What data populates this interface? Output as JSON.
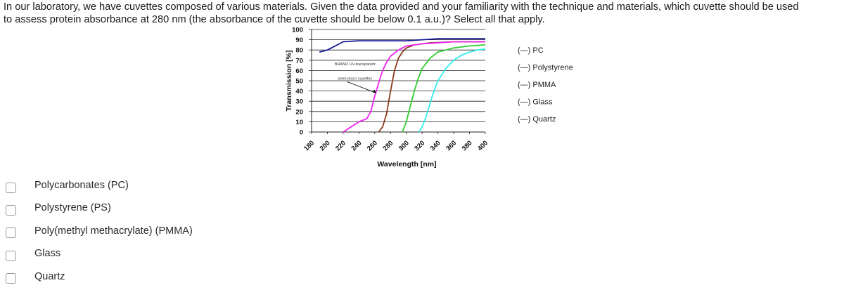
{
  "question": {
    "line1": "In our laboratory, we have cuvettes composed of various materials. Given the data provided and your familiarity with the technique and materials, which cuvette should be used",
    "line2": "to assess protein absorbance at 280 nm (the absorbance of the cuvette should be below 0.1 a.u.)? Select all that apply."
  },
  "chart_data": {
    "type": "line",
    "xlabel": "Wavelength [nm]",
    "ylabel": "Transmission [%]",
    "xlim": [
      180,
      400
    ],
    "ylim": [
      0,
      100
    ],
    "x_ticks": [
      "180",
      "200",
      "220",
      "240",
      "260",
      "280",
      "300",
      "320",
      "340",
      "360",
      "380",
      "400"
    ],
    "y_ticks": [
      "100",
      "90",
      "80",
      "70",
      "60",
      "50",
      "40",
      "30",
      "20",
      "10",
      "0"
    ],
    "grid": true,
    "legend_placement": "right",
    "annotation_lines": [
      "BRAND UV-transparent",
      "semi-micro cuvettes"
    ],
    "series": [
      {
        "name": "PC",
        "legend_label": "(—) PC",
        "color": "#8b3a1a",
        "points": [
          [
            265,
            0
          ],
          [
            270,
            5
          ],
          [
            275,
            18
          ],
          [
            280,
            40
          ],
          [
            285,
            60
          ],
          [
            290,
            72
          ],
          [
            295,
            78
          ],
          [
            300,
            82
          ],
          [
            310,
            85
          ],
          [
            330,
            87
          ],
          [
            360,
            88
          ],
          [
            400,
            88
          ]
        ]
      },
      {
        "name": "Polystyrene",
        "legend_label": "(—) Polystyrene",
        "color": "#ee22ee",
        "points": [
          [
            220,
            0
          ],
          [
            230,
            5
          ],
          [
            240,
            10
          ],
          [
            250,
            13
          ],
          [
            255,
            20
          ],
          [
            260,
            35
          ],
          [
            265,
            48
          ],
          [
            270,
            60
          ],
          [
            275,
            68
          ],
          [
            280,
            74
          ],
          [
            290,
            80
          ],
          [
            300,
            84
          ],
          [
            320,
            86
          ],
          [
            360,
            88
          ],
          [
            400,
            88
          ]
        ]
      },
      {
        "name": "PMMA",
        "legend_label": "(—) PMMA",
        "color": "#33cc33",
        "points": [
          [
            295,
            0
          ],
          [
            300,
            10
          ],
          [
            305,
            25
          ],
          [
            310,
            40
          ],
          [
            315,
            52
          ],
          [
            320,
            62
          ],
          [
            330,
            72
          ],
          [
            340,
            78
          ],
          [
            360,
            82
          ],
          [
            380,
            84
          ],
          [
            400,
            85
          ]
        ]
      },
      {
        "name": "Glass",
        "legend_label": "(—) Glass",
        "color": "#33eeee",
        "points": [
          [
            316,
            0
          ],
          [
            320,
            5
          ],
          [
            325,
            15
          ],
          [
            330,
            28
          ],
          [
            335,
            40
          ],
          [
            340,
            50
          ],
          [
            350,
            62
          ],
          [
            360,
            70
          ],
          [
            370,
            75
          ],
          [
            380,
            78
          ],
          [
            390,
            80
          ],
          [
            400,
            81
          ]
        ]
      },
      {
        "name": "Quartz",
        "legend_label": "(—) Quartz",
        "color": "#1a1a99",
        "points": [
          [
            190,
            78
          ],
          [
            200,
            80
          ],
          [
            210,
            84
          ],
          [
            220,
            88
          ],
          [
            240,
            89
          ],
          [
            260,
            89
          ],
          [
            280,
            89
          ],
          [
            300,
            89
          ],
          [
            320,
            90
          ],
          [
            340,
            91
          ],
          [
            360,
            91
          ],
          [
            400,
            91
          ]
        ]
      }
    ]
  },
  "options": [
    {
      "label": "Polycarbonates (PC)"
    },
    {
      "label": "Polystyrene (PS)"
    },
    {
      "label": "Poly(methyl methacrylate) (PMMA)"
    },
    {
      "label": "Glass"
    },
    {
      "label": "Quartz"
    }
  ]
}
